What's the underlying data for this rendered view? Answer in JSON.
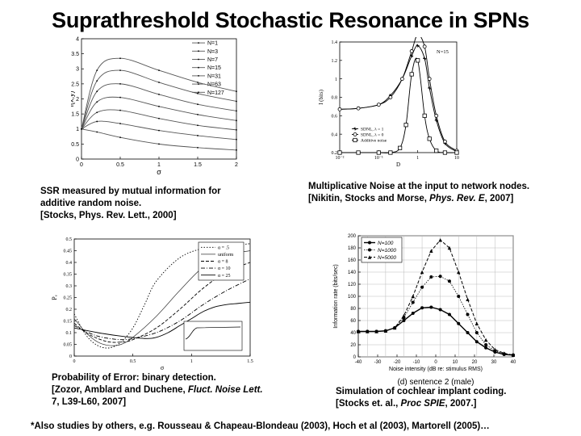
{
  "title": "Suprathreshold Stochastic Resonance in SPNs",
  "captions": {
    "c1": [
      "SSR measured by mutual  information for",
      "additive random noise.",
      "[Stocks, Phys. Rev. Lett., 2000]"
    ],
    "c2_line1": "Multiplicative Noise at the input to network nodes.",
    "c2_pre": "[Nikitin, Stocks and Morse, ",
    "c2_journal": "Phys. Rev. E",
    "c2_post": ", 2007]",
    "c3_line1": "Probability of Error: binary detection.",
    "c3_pre": "[Zozor, Amblard and Duchene, ",
    "c3_journal": "Fluct. Noise Lett.",
    "c3_line3": "7, L39-L60, 2007]",
    "c4_line1": "Simulation of cochlear implant coding.",
    "c4_pre": "[Stocks et. al., ",
    "c4_journal": "Proc SPIE",
    "c4_post": ", 2007.]"
  },
  "footer": "*Also studies by others, e.g. Rousseau & Chapeau-Blondeau (2003), Hoch et al (2003), Martorell (2005)…",
  "chart_data": [
    {
      "type": "line",
      "xlabel": "σ",
      "ylabel": "I(x,y)",
      "xlim": [
        0,
        2
      ],
      "ylim": [
        0,
        4
      ],
      "xticks": [
        "0",
        "0.5",
        "1",
        "1.5",
        "2"
      ],
      "yticks": [
        "0",
        "0.5",
        "1",
        "1.5",
        "2",
        "2.5",
        "3",
        "3.5",
        "4"
      ],
      "legend_position": "top-right",
      "series": [
        {
          "name": "N=1",
          "x": [
            0,
            0.2,
            0.5,
            1,
            1.5,
            2
          ],
          "values": [
            1.0,
            0.9,
            0.72,
            0.5,
            0.38,
            0.3
          ]
        },
        {
          "name": "N=3",
          "x": [
            0,
            0.2,
            0.5,
            1,
            1.5,
            2
          ],
          "values": [
            1.0,
            1.25,
            1.18,
            0.95,
            0.78,
            0.65
          ]
        },
        {
          "name": "N=7",
          "x": [
            0,
            0.2,
            0.5,
            1,
            1.5,
            2
          ],
          "values": [
            1.0,
            1.55,
            1.62,
            1.35,
            1.12,
            0.97
          ]
        },
        {
          "name": "N=15",
          "x": [
            0,
            0.2,
            0.5,
            1,
            1.5,
            2
          ],
          "values": [
            1.0,
            1.9,
            2.05,
            1.75,
            1.48,
            1.28
          ]
        },
        {
          "name": "N=31",
          "x": [
            0,
            0.2,
            0.5,
            1,
            1.5,
            2
          ],
          "values": [
            1.0,
            2.25,
            2.5,
            2.15,
            1.82,
            1.6
          ]
        },
        {
          "name": "N=63",
          "x": [
            0,
            0.2,
            0.5,
            1,
            1.5,
            2
          ],
          "values": [
            1.0,
            2.6,
            2.95,
            2.55,
            2.18,
            1.92
          ]
        },
        {
          "name": "N=127",
          "x": [
            0,
            0.2,
            0.5,
            1,
            1.5,
            2
          ],
          "values": [
            1.0,
            2.95,
            3.35,
            2.95,
            2.55,
            2.25
          ]
        }
      ]
    },
    {
      "type": "line",
      "xlabel": "D",
      "ylabel": "I (bits)",
      "x_scale": "log",
      "xlim": [
        0.01,
        10
      ],
      "ylim": [
        0.2,
        1.4
      ],
      "xticks": [
        "10⁻²",
        "10⁻¹",
        "1",
        "10"
      ],
      "yticks": [
        "0.2",
        "0.4",
        "0.6",
        "0.8",
        "1",
        "1.2",
        "1.4"
      ],
      "annotation": "N=15",
      "legend_position": "bottom-center",
      "series": [
        {
          "name": "SDNL, λ = 1",
          "x": [
            0.01,
            0.03,
            0.1,
            0.2,
            0.4,
            0.7,
            1,
            1.5,
            2,
            3,
            5,
            10
          ],
          "values": [
            0.67,
            0.68,
            0.72,
            0.82,
            1.0,
            1.25,
            1.36,
            1.22,
            0.9,
            0.55,
            0.3,
            0.21
          ]
        },
        {
          "name": "SDNL, λ = 0",
          "x": [
            0.01,
            0.03,
            0.1,
            0.2,
            0.4,
            0.7,
            1,
            1.5,
            2,
            3,
            5,
            10
          ],
          "values": [
            0.67,
            0.68,
            0.72,
            0.8,
            1.0,
            1.3,
            1.48,
            1.35,
            1.0,
            0.6,
            0.32,
            0.22
          ]
        },
        {
          "name": "Additive noise",
          "x": [
            0.01,
            0.03,
            0.1,
            0.2,
            0.35,
            0.5,
            0.7,
            1,
            1.5,
            2,
            3,
            5,
            10
          ],
          "values": [
            0.2,
            0.2,
            0.2,
            0.2,
            0.25,
            0.5,
            1.05,
            1.2,
            0.6,
            0.35,
            0.22,
            0.2,
            0.2
          ]
        }
      ]
    },
    {
      "type": "line",
      "xlabel": "σ",
      "ylabel": "Pₑ",
      "xlim": [
        0,
        1.5
      ],
      "ylim": [
        0,
        0.5
      ],
      "xticks": [
        "0",
        "0.5",
        "1",
        "1.5"
      ],
      "yticks": [
        "0",
        "0.05",
        "0.1",
        "0.15",
        "0.2",
        "0.25",
        "0.3",
        "0.35",
        "0.4",
        "0.45",
        "0.5"
      ],
      "legend_position": "top-right",
      "series": [
        {
          "name": "α = .5",
          "x": [
            0,
            0.1,
            0.2,
            0.3,
            0.4,
            0.5,
            0.6,
            0.7,
            0.9,
            1.1,
            1.3,
            1.5
          ],
          "values": [
            0.18,
            0.09,
            0.045,
            0.035,
            0.06,
            0.12,
            0.22,
            0.32,
            0.42,
            0.46,
            0.47,
            0.48
          ]
        },
        {
          "name": "uniform",
          "x": [
            0,
            0.1,
            0.2,
            0.3,
            0.4,
            0.5,
            0.7,
            0.9,
            1.1,
            1.3,
            1.5
          ],
          "values": [
            0.16,
            0.1,
            0.06,
            0.045,
            0.05,
            0.08,
            0.17,
            0.28,
            0.38,
            0.43,
            0.45
          ]
        },
        {
          "name": "α = 8",
          "x": [
            0,
            0.1,
            0.2,
            0.3,
            0.4,
            0.5,
            0.7,
            0.9,
            1.1,
            1.3,
            1.5
          ],
          "values": [
            0.14,
            0.1,
            0.075,
            0.06,
            0.06,
            0.07,
            0.12,
            0.2,
            0.29,
            0.36,
            0.4
          ]
        },
        {
          "name": "α = 10",
          "x": [
            0,
            0.1,
            0.2,
            0.3,
            0.4,
            0.5,
            0.7,
            0.9,
            1.1,
            1.3,
            1.5
          ],
          "values": [
            0.13,
            0.105,
            0.085,
            0.075,
            0.07,
            0.075,
            0.1,
            0.15,
            0.22,
            0.28,
            0.33
          ]
        },
        {
          "name": "α = 25",
          "x": [
            0,
            0.2,
            0.4,
            0.6,
            0.7,
            0.8,
            0.9,
            1.0,
            1.1,
            1.2,
            1.3,
            1.4,
            1.5
          ],
          "values": [
            0.12,
            0.1,
            0.085,
            0.075,
            0.08,
            0.1,
            0.13,
            0.16,
            0.19,
            0.21,
            0.22,
            0.225,
            0.23
          ]
        }
      ]
    },
    {
      "type": "line",
      "xlabel": "Noise intensity (dB re: stimulus RMS)",
      "ylabel": "Information rate (bits/sec)",
      "xlim": [
        -45,
        40
      ],
      "ylim": [
        0,
        200
      ],
      "xticks": [
        "-40",
        "-30",
        "-20",
        "-10",
        "0",
        "10",
        "20",
        "30",
        "40"
      ],
      "yticks": [
        "0",
        "20",
        "40",
        "60",
        "80",
        "100",
        "120",
        "140",
        "160",
        "180",
        "200"
      ],
      "subtitle": "(d) sentence 2 (male)",
      "legend_position": "top-left",
      "series": [
        {
          "name": "N=100",
          "x": [
            -45,
            -40,
            -35,
            -30,
            -25,
            -20,
            -15,
            -10,
            -5,
            0,
            5,
            10,
            15,
            20,
            25,
            30,
            35,
            40
          ],
          "values": [
            42,
            42,
            42,
            43,
            48,
            60,
            72,
            81,
            82,
            78,
            70,
            55,
            40,
            25,
            15,
            8,
            4,
            3
          ]
        },
        {
          "name": "N=1000",
          "x": [
            -45,
            -40,
            -35,
            -30,
            -25,
            -20,
            -15,
            -10,
            -5,
            0,
            5,
            10,
            15,
            20,
            25,
            30,
            35,
            40
          ],
          "values": [
            42,
            42,
            42,
            43,
            48,
            65,
            90,
            115,
            132,
            133,
            125,
            100,
            70,
            40,
            20,
            10,
            5,
            3
          ]
        },
        {
          "name": "N=5000",
          "x": [
            -45,
            -40,
            -35,
            -30,
            -25,
            -20,
            -15,
            -10,
            -5,
            0,
            5,
            10,
            15,
            20,
            25,
            30,
            35,
            40
          ],
          "values": [
            42,
            42,
            42,
            43,
            48,
            68,
            100,
            140,
            175,
            193,
            180,
            140,
            95,
            55,
            28,
            12,
            6,
            3
          ]
        }
      ]
    }
  ]
}
